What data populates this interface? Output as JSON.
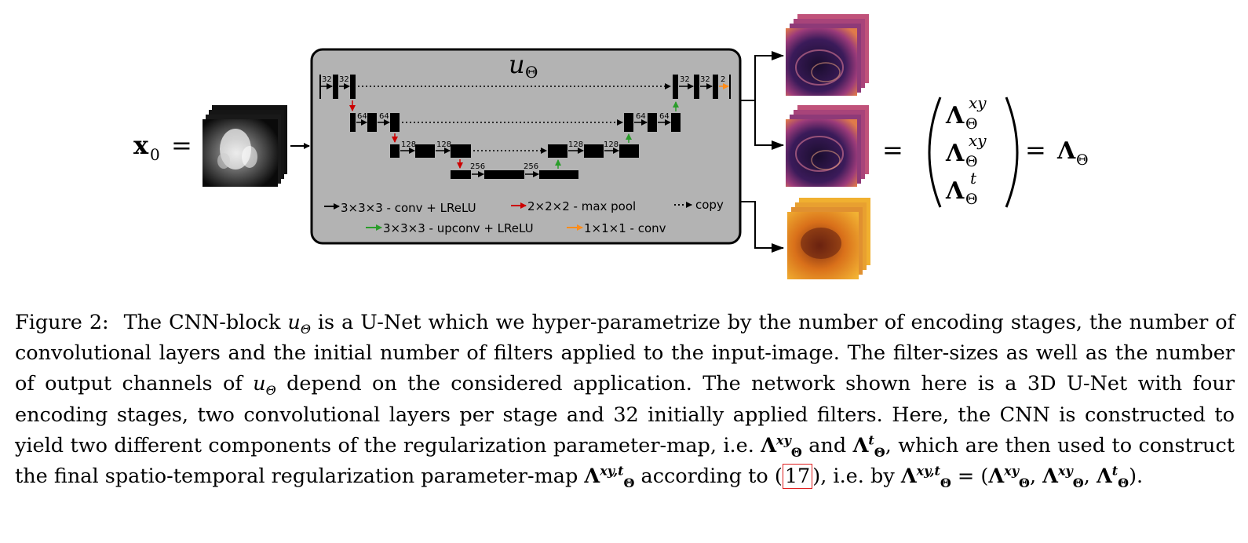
{
  "figure": {
    "input_label": "x",
    "input_sub": "0",
    "equals": "=",
    "net_symbol": "u",
    "net_sub": "Θ",
    "channels": {
      "enc1": [
        "32",
        "32"
      ],
      "enc2": [
        "64",
        "64"
      ],
      "enc3": [
        "128",
        "128"
      ],
      "bottleneck": [
        "256",
        "256"
      ],
      "dec3": [
        "128",
        "128"
      ],
      "dec2": [
        "64",
        "64"
      ],
      "dec1": [
        "32",
        "32"
      ],
      "out": "2"
    },
    "legend": {
      "conv": "3×3×3  -  conv + LReLU",
      "pool": "2×2×2  -  max pool",
      "copy": "copy",
      "upconv": "3×3×3  -  upconv + LReLU",
      "conv1": "1×1×1  -  conv"
    },
    "colors": {
      "box_fill": "#b3b3b3",
      "pool_arrow": "#cc0000",
      "upconv_arrow": "#2a9d2a",
      "conv1_arrow": "#ff8c1a"
    },
    "output": {
      "lambda": "Λ",
      "sub": "Θ",
      "sup_xy": "xy",
      "sup_t": "t",
      "equals": "="
    }
  },
  "caption": {
    "label": "Figure 2:",
    "text_1": "The CNN-block ",
    "text_2": " is a U-Net which we hyper-parametrize by the number of encoding stages, the number of convolutional layers and the initial number of filters applied to the input-image. The filter-sizes as well as the number of output channels of ",
    "text_3": " depend on the considered application. The network shown here is a 3D U-Net with four encoding stages, two convolutional layers per stage and 32 initially applied filters. Here, the CNN is constructed to yield two different components of the regularization parameter-map, i.e. ",
    "and": " and ",
    "text_4": ", which are then used to construct the final spatio-temporal regularization parameter-map ",
    "text_5": " according to (",
    "ref": "17",
    "text_6": "), i.e. by ",
    "text_eq": " = (",
    "comma": ", ",
    "text_end": ").",
    "u": "u",
    "theta": "Θ",
    "lambda": "Λ",
    "xy": "xy",
    "t": "t",
    "xyt": "xy,t"
  }
}
